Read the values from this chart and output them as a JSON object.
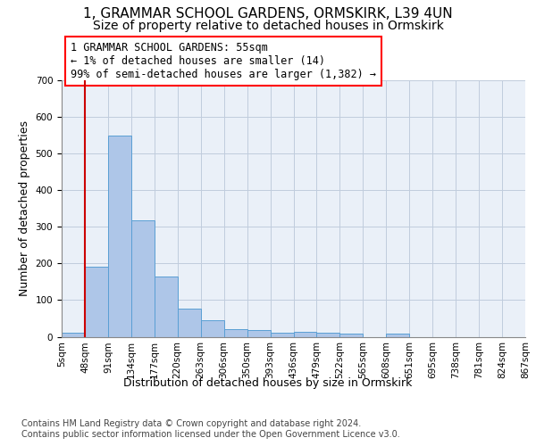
{
  "title1": "1, GRAMMAR SCHOOL GARDENS, ORMSKIRK, L39 4UN",
  "title2": "Size of property relative to detached houses in Ormskirk",
  "xlabel": "Distribution of detached houses by size in Ormskirk",
  "ylabel": "Number of detached properties",
  "bar_values": [
    10,
    190,
    550,
    318,
    165,
    76,
    46,
    20,
    18,
    12,
    13,
    12,
    9,
    0,
    8,
    0,
    0,
    0,
    0,
    0
  ],
  "x_tick_labels": [
    "5sqm",
    "48sqm",
    "91sqm",
    "134sqm",
    "177sqm",
    "220sqm",
    "263sqm",
    "306sqm",
    "350sqm",
    "393sqm",
    "436sqm",
    "479sqm",
    "522sqm",
    "565sqm",
    "608sqm",
    "651sqm",
    "695sqm",
    "738sqm",
    "781sqm",
    "824sqm",
    "867sqm"
  ],
  "bar_color": "#aec6e8",
  "bar_edge_color": "#5a9fd4",
  "background_color": "#eaf0f8",
  "grid_color": "#c0ccdd",
  "vline_color": "#cc0000",
  "annotation_text": "1 GRAMMAR SCHOOL GARDENS: 55sqm\n← 1% of detached houses are smaller (14)\n99% of semi-detached houses are larger (1,382) →",
  "ylim_max": 700,
  "yticks": [
    0,
    100,
    200,
    300,
    400,
    500,
    600,
    700
  ],
  "footnote": "Contains HM Land Registry data © Crown copyright and database right 2024.\nContains public sector information licensed under the Open Government Licence v3.0.",
  "title1_fontsize": 11,
  "title2_fontsize": 10,
  "xlabel_fontsize": 9,
  "ylabel_fontsize": 9,
  "tick_fontsize": 7.5,
  "annot_fontsize": 8.5,
  "footnote_fontsize": 7,
  "vline_x_bar_index": 0.5
}
